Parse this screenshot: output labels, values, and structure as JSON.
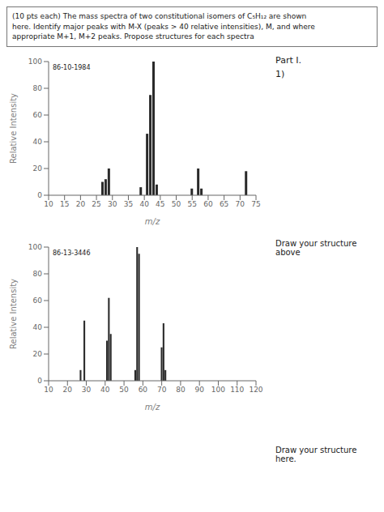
{
  "chart_data": [
    {
      "type": "bar",
      "title": "(10 pts each) The mass spectra of two constitutional isomers of C₅H₁₂ are shown\nhere. Identify major peaks with M-X (peaks > 40 relative intensities), M, and where\nappropriate M+1, M+2 peaks. Propose structures for each spectra",
      "annotations": [
        "Part I.",
        "1)",
        "86-10-1984",
        "Draw your structure above"
      ],
      "xlabel": "m/z",
      "ylabel": "Relative Intensity",
      "x": [
        27,
        28,
        29,
        39,
        41,
        42,
        43,
        44,
        55,
        57,
        58,
        72
      ],
      "values": [
        10,
        12,
        20,
        6,
        46,
        75,
        100,
        8,
        5,
        20,
        5,
        18
      ],
      "xlim": [
        10,
        75
      ],
      "ylim": [
        0,
        100
      ],
      "xticks": [
        10,
        15,
        20,
        25,
        30,
        35,
        40,
        45,
        50,
        55,
        60,
        65,
        70,
        75
      ],
      "yticks": [
        0,
        20,
        40,
        60,
        80,
        100
      ],
      "color": "#2a2a2a",
      "grid": false
    },
    {
      "type": "bar",
      "annotations": [
        "86-13-3446",
        "Draw your structure here."
      ],
      "xlabel": "m/z",
      "ylabel": "Relative Intensity",
      "x": [
        27,
        29,
        41,
        42,
        43,
        56,
        57,
        58,
        70,
        71,
        72
      ],
      "values": [
        8,
        45,
        30,
        62,
        35,
        8,
        100,
        95,
        25,
        43,
        8
      ],
      "xlim": [
        10,
        120
      ],
      "ylim": [
        0,
        100
      ],
      "xticks": [
        10,
        20,
        30,
        40,
        50,
        60,
        70,
        80,
        90,
        100,
        110,
        120
      ],
      "yticks": [
        0,
        20,
        40,
        60,
        80,
        100
      ],
      "color": "#2a2a2a",
      "grid": false
    }
  ]
}
